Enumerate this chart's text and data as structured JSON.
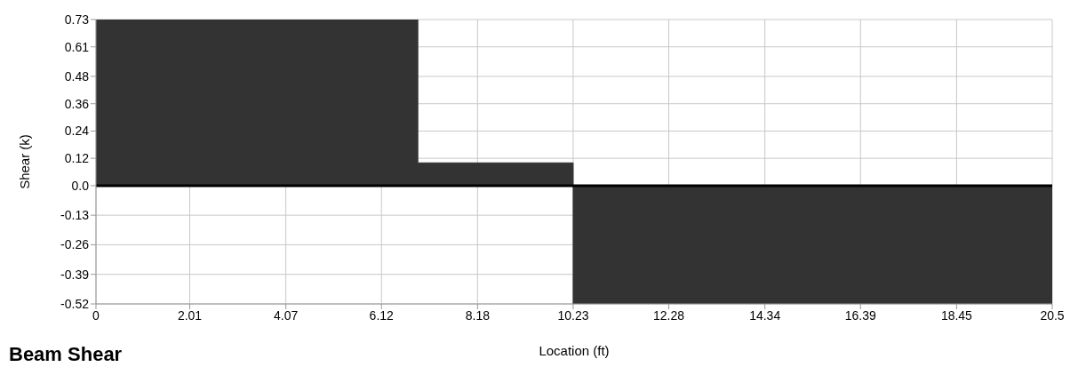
{
  "chart_data": {
    "type": "step",
    "title": "Beam Shear",
    "xlabel": "Location (ft)",
    "ylabel": "Shear (k)",
    "x": [
      0,
      6.9,
      10.23,
      20.5
    ],
    "values": [
      0.73,
      0.1,
      -0.52,
      -0.52
    ],
    "color": "#333333",
    "xlim": [
      0,
      20.5
    ],
    "xticks": [
      0,
      2.01,
      4.07,
      6.12,
      8.18,
      10.23,
      12.28,
      14.34,
      16.39,
      18.45,
      20.5
    ],
    "ylim": [
      -0.52,
      0.73
    ],
    "yticks": [
      0.73,
      0.61,
      0.48,
      0.36,
      0.24,
      0.12,
      {
        "value": 0,
        "label": "0.0"
      },
      -0.13,
      -0.26,
      -0.39,
      -0.52
    ],
    "ref_lines": [
      {
        "axis": "y",
        "value": 0,
        "color": "#000000"
      }
    ],
    "grid": true
  }
}
